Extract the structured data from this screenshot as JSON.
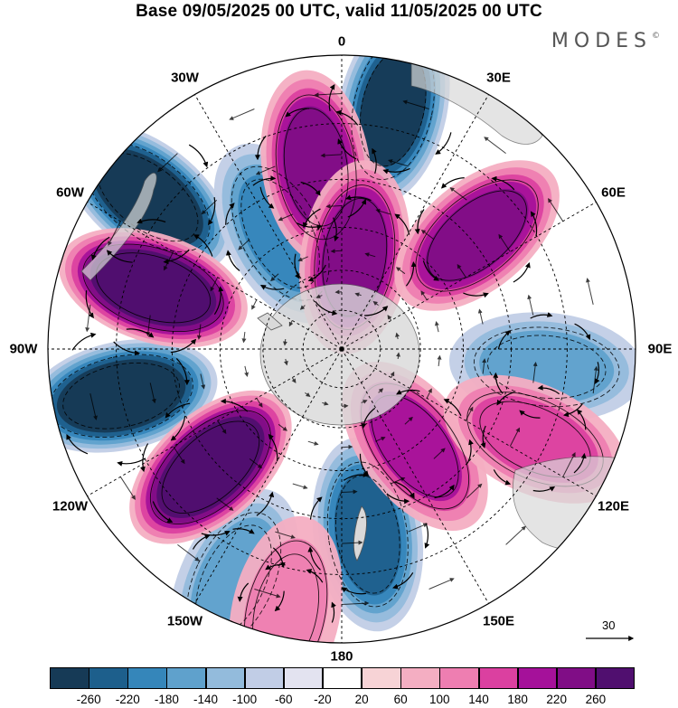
{
  "title": "Base 09/05/2025 00 UTC, valid 11/05/2025 00 UTC",
  "brand": {
    "name": "MODES",
    "mark": "©"
  },
  "lon_labels": [
    "0",
    "30E",
    "60E",
    "90E",
    "120E",
    "150E",
    "180",
    "150W",
    "120W",
    "90W",
    "60W",
    "30W"
  ],
  "reference_vector": {
    "label": "30"
  },
  "colorbar": {
    "ticks": [
      "-260",
      "-220",
      "-180",
      "-140",
      "-100",
      "-60",
      "-20",
      "20",
      "60",
      "100",
      "140",
      "180",
      "220",
      "260"
    ],
    "colors": [
      "#163a56",
      "#1d5f8c",
      "#3586ba",
      "#5fa1cc",
      "#93bbdc",
      "#c1cde6",
      "#e3e3f0",
      "#ffffff",
      "#f7d3d6",
      "#f4aec2",
      "#ee7eb1",
      "#db40a0",
      "#a5119a",
      "#800d86",
      "#500f6f"
    ]
  },
  "colors": {
    "land": "#d9d9d9",
    "grid": "#000000",
    "coast": "#555555"
  },
  "anomaly_centers": [
    {
      "sign": "negative",
      "magnitude": 260,
      "lon": -52,
      "lat": 10
    },
    {
      "sign": "negative",
      "magnitude": 220,
      "lon": 12,
      "lat": 10
    },
    {
      "sign": "negative",
      "magnitude": 100,
      "lon": 95,
      "lat": 20
    },
    {
      "sign": "negative",
      "magnitude": 260,
      "lon": -102,
      "lat": 15
    },
    {
      "sign": "negative",
      "magnitude": 180,
      "lon": 172,
      "lat": 25
    },
    {
      "sign": "negative",
      "magnitude": 100,
      "lon": -155,
      "lat": 8
    },
    {
      "sign": "negative",
      "magnitude": 140,
      "lon": -28,
      "lat": 42
    },
    {
      "sign": "positive",
      "magnitude": 180,
      "lon": -8,
      "lat": 26
    },
    {
      "sign": "positive",
      "magnitude": 180,
      "lon": 8,
      "lat": 55
    },
    {
      "sign": "positive",
      "magnitude": 180,
      "lon": 50,
      "lat": 28
    },
    {
      "sign": "positive",
      "magnitude": 260,
      "lon": -72,
      "lat": 22
    },
    {
      "sign": "positive",
      "magnitude": 260,
      "lon": -132,
      "lat": 28
    },
    {
      "sign": "positive",
      "magnitude": 140,
      "lon": 143,
      "lat": 45
    },
    {
      "sign": "positive",
      "magnitude": 100,
      "lon": 115,
      "lat": 18
    },
    {
      "sign": "positive",
      "magnitude": 60,
      "lon": -168,
      "lat": 5
    }
  ]
}
